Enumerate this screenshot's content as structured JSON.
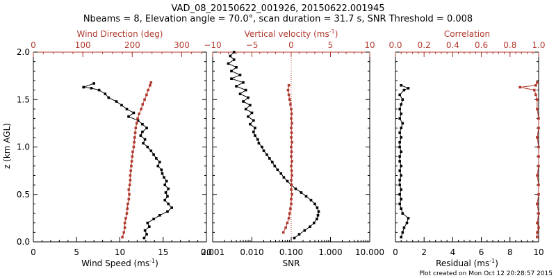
{
  "header": {
    "title_line1": "VAD_08_20150622_001926, 20150622.001945",
    "title_line2": "Nbeams = 8, Elevation angle = 70.0°, scan duration = 31.7 s, SNR Threshold = 0.008"
  },
  "footer": {
    "plot_created": "Plot created on Mon Oct 12 20:28:57 2015"
  },
  "colors": {
    "primary": "#000000",
    "secondary": "#b03a2e"
  },
  "chart_data": [
    {
      "type": "line",
      "panel": "wind",
      "ylabel": "z (km AGL)",
      "ylim": [
        0,
        2
      ],
      "y_ticks": [
        "0.0",
        "0.5",
        "1.0",
        "1.5",
        "2.0"
      ],
      "bottom_axis": {
        "label": "Wind Speed (ms",
        "label_sup": "-1",
        "label_end": ")",
        "range": [
          0,
          20
        ],
        "ticks": [
          "0",
          "5",
          "10",
          "15",
          "20"
        ]
      },
      "top_axis": {
        "label": "Wind Direction (deg)",
        "range": [
          0,
          350
        ],
        "ticks": [
          "0",
          "100",
          "200",
          "300"
        ],
        "tick_values": [
          0,
          100,
          200,
          300
        ]
      },
      "series": [
        {
          "axis": "bottom",
          "color": "black",
          "points": [
            [
              12.8,
              0.04
            ],
            [
              13.1,
              0.08
            ],
            [
              12.9,
              0.12
            ],
            [
              13.4,
              0.16
            ],
            [
              13.2,
              0.2
            ],
            [
              13.9,
              0.24
            ],
            [
              14.6,
              0.28
            ],
            [
              15.5,
              0.32
            ],
            [
              16.0,
              0.36
            ],
            [
              15.6,
              0.4
            ],
            [
              15.2,
              0.44
            ],
            [
              15.5,
              0.48
            ],
            [
              15.3,
              0.52
            ],
            [
              15.6,
              0.56
            ],
            [
              15.2,
              0.6
            ],
            [
              15.4,
              0.64
            ],
            [
              15.1,
              0.68
            ],
            [
              14.9,
              0.72
            ],
            [
              14.8,
              0.76
            ],
            [
              14.4,
              0.8
            ],
            [
              14.6,
              0.84
            ],
            [
              14.2,
              0.88
            ],
            [
              13.9,
              0.92
            ],
            [
              13.6,
              0.96
            ],
            [
              13.2,
              1.0
            ],
            [
              12.7,
              1.04
            ],
            [
              12.9,
              1.08
            ],
            [
              12.4,
              1.12
            ],
            [
              12.6,
              1.16
            ],
            [
              13.1,
              1.2
            ],
            [
              12.6,
              1.24
            ],
            [
              12.1,
              1.28
            ],
            [
              11.0,
              1.32
            ],
            [
              11.6,
              1.36
            ],
            [
              10.8,
              1.4
            ],
            [
              10.2,
              1.44
            ],
            [
              9.6,
              1.48
            ],
            [
              8.7,
              1.52
            ],
            [
              8.3,
              1.56
            ],
            [
              7.6,
              1.6
            ],
            [
              6.7,
              1.62
            ],
            [
              5.8,
              1.63
            ],
            [
              7.0,
              1.67
            ]
          ]
        },
        {
          "axis": "top",
          "color": "red",
          "points": [
            [
              180,
              0.05
            ],
            [
              183,
              0.1
            ],
            [
              185,
              0.15
            ],
            [
              185,
              0.2
            ],
            [
              187,
              0.25
            ],
            [
              189,
              0.3
            ],
            [
              190,
              0.35
            ],
            [
              191,
              0.4
            ],
            [
              193,
              0.45
            ],
            [
              194,
              0.5
            ],
            [
              193,
              0.55
            ],
            [
              195,
              0.6
            ],
            [
              196,
              0.65
            ],
            [
              196,
              0.7
            ],
            [
              197,
              0.75
            ],
            [
              198,
              0.8
            ],
            [
              199,
              0.85
            ],
            [
              200,
              0.9
            ],
            [
              201,
              0.95
            ],
            [
              203,
              1.0
            ],
            [
              204,
              1.05
            ],
            [
              205,
              1.1
            ],
            [
              206,
              1.15
            ],
            [
              207,
              1.2
            ],
            [
              209,
              1.25
            ],
            [
              211,
              1.3
            ],
            [
              214,
              1.35
            ],
            [
              218,
              1.4
            ],
            [
              221,
              1.45
            ],
            [
              225,
              1.5
            ],
            [
              229,
              1.55
            ],
            [
              232,
              1.6
            ],
            [
              236,
              1.65
            ],
            [
              238,
              1.68
            ]
          ]
        }
      ]
    },
    {
      "type": "line",
      "panel": "vertical",
      "ylim": [
        0,
        2
      ],
      "bottom_axis": {
        "label": "SNR",
        "scale": "log",
        "range": [
          0.001,
          10
        ],
        "ticks": [
          "0.001",
          "0.010",
          "0.100",
          "1.000",
          "10.000"
        ]
      },
      "top_axis": {
        "label": "Vertical velocity (ms",
        "label_sup": "-1",
        "label_end": ")",
        "range": [
          -10,
          10
        ],
        "ticks": [
          "−10",
          "−5",
          "0",
          "5",
          "10"
        ],
        "tick_values": [
          -10,
          -5,
          0,
          5,
          10
        ]
      },
      "zero_line": 0,
      "series": [
        {
          "axis": "bottom",
          "color": "black",
          "points": [
            [
              0.12,
              0.04
            ],
            [
              0.16,
              0.08
            ],
            [
              0.22,
              0.12
            ],
            [
              0.3,
              0.16
            ],
            [
              0.38,
              0.2
            ],
            [
              0.45,
              0.24
            ],
            [
              0.48,
              0.28
            ],
            [
              0.5,
              0.32
            ],
            [
              0.46,
              0.36
            ],
            [
              0.4,
              0.4
            ],
            [
              0.32,
              0.44
            ],
            [
              0.24,
              0.48
            ],
            [
              0.18,
              0.52
            ],
            [
              0.13,
              0.56
            ],
            [
              0.1,
              0.6
            ],
            [
              0.08,
              0.64
            ],
            [
              0.065,
              0.68
            ],
            [
              0.055,
              0.72
            ],
            [
              0.045,
              0.76
            ],
            [
              0.038,
              0.8
            ],
            [
              0.033,
              0.84
            ],
            [
              0.028,
              0.88
            ],
            [
              0.024,
              0.92
            ],
            [
              0.02,
              0.96
            ],
            [
              0.018,
              1.0
            ],
            [
              0.015,
              1.04
            ],
            [
              0.014,
              1.08
            ],
            [
              0.012,
              1.12
            ],
            [
              0.011,
              1.16
            ],
            [
              0.012,
              1.2
            ],
            [
              0.009,
              1.24
            ],
            [
              0.011,
              1.28
            ],
            [
              0.008,
              1.32
            ],
            [
              0.01,
              1.36
            ],
            [
              0.007,
              1.4
            ],
            [
              0.009,
              1.44
            ],
            [
              0.006,
              1.48
            ],
            [
              0.008,
              1.52
            ],
            [
              0.005,
              1.56
            ],
            [
              0.007,
              1.6
            ],
            [
              0.004,
              1.64
            ],
            [
              0.006,
              1.68
            ],
            [
              0.003,
              1.72
            ],
            [
              0.005,
              1.76
            ],
            [
              0.003,
              1.8
            ],
            [
              0.004,
              1.84
            ],
            [
              0.0025,
              1.88
            ],
            [
              0.0035,
              1.92
            ],
            [
              0.0028,
              1.96
            ],
            [
              0.0035,
              2.0
            ]
          ]
        },
        {
          "axis": "top",
          "color": "red",
          "points": [
            [
              -1.0,
              0.1
            ],
            [
              -0.7,
              0.15
            ],
            [
              -0.5,
              0.2
            ],
            [
              -0.3,
              0.25
            ],
            [
              -0.2,
              0.3
            ],
            [
              -0.1,
              0.35
            ],
            [
              0.0,
              0.4
            ],
            [
              0.0,
              0.45
            ],
            [
              0.1,
              0.5
            ],
            [
              0.0,
              0.55
            ],
            [
              0.05,
              0.6
            ],
            [
              0.0,
              0.65
            ],
            [
              0.1,
              0.7
            ],
            [
              0.05,
              0.75
            ],
            [
              0.0,
              0.8
            ],
            [
              0.1,
              0.85
            ],
            [
              0.0,
              0.9
            ],
            [
              0.05,
              0.95
            ],
            [
              0.0,
              1.0
            ],
            [
              0.1,
              1.05
            ],
            [
              0.0,
              1.1
            ],
            [
              0.05,
              1.15
            ],
            [
              0.0,
              1.2
            ],
            [
              0.1,
              1.25
            ],
            [
              0.0,
              1.3
            ],
            [
              0.05,
              1.35
            ],
            [
              0.0,
              1.4
            ],
            [
              -0.1,
              1.45
            ],
            [
              -0.2,
              1.5
            ],
            [
              -0.3,
              1.55
            ],
            [
              -0.4,
              1.6
            ],
            [
              -0.3,
              1.65
            ]
          ]
        }
      ]
    },
    {
      "type": "line",
      "panel": "residual",
      "ylim": [
        0,
        2
      ],
      "bottom_axis": {
        "label": "Residual (ms",
        "label_sup": "-1",
        "label_end": ")",
        "range": [
          0,
          10
        ],
        "ticks": [
          "0",
          "2",
          "4",
          "6",
          "8",
          "10"
        ]
      },
      "top_axis": {
        "label": "Correlation",
        "range": [
          0,
          1
        ],
        "ticks": [
          "0.0",
          "0.2",
          "0.4",
          "0.6",
          "0.8",
          "1.0"
        ],
        "tick_values": [
          0,
          0.2,
          0.4,
          0.6,
          0.8,
          1.0
        ]
      },
      "series": [
        {
          "axis": "bottom",
          "color": "black",
          "points": [
            [
              0.4,
              0.05
            ],
            [
              0.5,
              0.1
            ],
            [
              0.6,
              0.15
            ],
            [
              0.8,
              0.2
            ],
            [
              0.9,
              0.25
            ],
            [
              0.5,
              0.3
            ],
            [
              0.4,
              0.35
            ],
            [
              0.3,
              0.4
            ],
            [
              0.4,
              0.45
            ],
            [
              0.3,
              0.5
            ],
            [
              0.4,
              0.55
            ],
            [
              0.3,
              0.6
            ],
            [
              0.3,
              0.65
            ],
            [
              0.4,
              0.7
            ],
            [
              0.3,
              0.75
            ],
            [
              0.4,
              0.8
            ],
            [
              0.3,
              0.85
            ],
            [
              0.3,
              0.9
            ],
            [
              0.4,
              0.95
            ],
            [
              0.3,
              1.0
            ],
            [
              0.3,
              1.05
            ],
            [
              0.4,
              1.1
            ],
            [
              0.3,
              1.15
            ],
            [
              0.4,
              1.2
            ],
            [
              0.5,
              1.25
            ],
            [
              0.3,
              1.3
            ],
            [
              0.4,
              1.35
            ],
            [
              0.3,
              1.4
            ],
            [
              0.4,
              1.45
            ],
            [
              0.5,
              1.5
            ],
            [
              0.3,
              1.55
            ],
            [
              0.6,
              1.6
            ],
            [
              0.9,
              1.62
            ],
            [
              0.4,
              1.65
            ]
          ]
        },
        {
          "axis": "top",
          "color": "red",
          "points": [
            [
              0.99,
              0.05
            ],
            [
              0.99,
              0.1
            ],
            [
              1.0,
              0.15
            ],
            [
              0.99,
              0.2
            ],
            [
              1.0,
              0.3
            ],
            [
              0.99,
              0.4
            ],
            [
              1.0,
              0.5
            ],
            [
              1.0,
              0.6
            ],
            [
              0.99,
              0.7
            ],
            [
              1.0,
              0.8
            ],
            [
              1.0,
              0.9
            ],
            [
              1.0,
              1.0
            ],
            [
              0.99,
              1.1
            ],
            [
              1.0,
              1.2
            ],
            [
              1.0,
              1.3
            ],
            [
              0.99,
              1.4
            ],
            [
              0.99,
              1.5
            ],
            [
              0.98,
              1.55
            ],
            [
              0.97,
              1.6
            ],
            [
              0.87,
              1.63
            ],
            [
              0.98,
              1.65
            ],
            [
              0.99,
              1.68
            ]
          ]
        }
      ]
    }
  ]
}
